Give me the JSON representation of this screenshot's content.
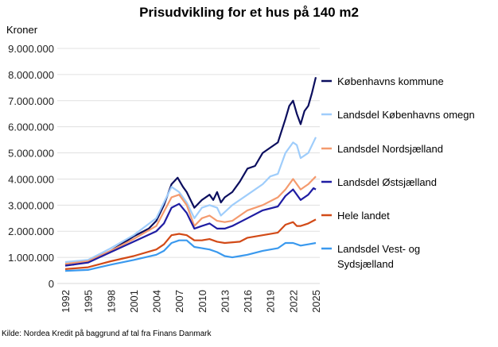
{
  "chart_data": {
    "type": "line",
    "title": "Prisudvikling for et hus på 140 m2",
    "ylabel": "Kroner",
    "xlabel": "",
    "ylim": [
      0,
      9000000
    ],
    "xlim": [
      1992,
      2025
    ],
    "yticks": [
      "0",
      "1.000.000",
      "2.000.000",
      "3.000.000",
      "4.000.000",
      "5.000.000",
      "6.000.000",
      "7.000.000",
      "8.000.000",
      "9.000.000"
    ],
    "xticks": [
      "1992",
      "1995",
      "1998",
      "2001",
      "2004",
      "2007",
      "2010",
      "2013",
      "2016",
      "2019",
      "2022",
      "2025"
    ],
    "grid": "horizontal",
    "legend": "right",
    "series": [
      {
        "name": "Københavns kommune",
        "color": "#0b0e5e",
        "x": [
          1992,
          1993,
          1995,
          1998,
          2001,
          2003,
          2004,
          2005,
          2006,
          2006.8,
          2007.5,
          2008,
          2009,
          2010,
          2011,
          2011.5,
          2012,
          2012.5,
          2013,
          2014,
          2015,
          2016,
          2017,
          2018,
          2019,
          2020,
          2021,
          2021.5,
          2022,
          2022.5,
          2023,
          2023.5,
          2024,
          2024.5,
          2025
        ],
        "y": [
          750000,
          720000,
          850000,
          1250000,
          1800000,
          2100000,
          2400000,
          3000000,
          3800000,
          4050000,
          3700000,
          3500000,
          2900000,
          3200000,
          3400000,
          3200000,
          3500000,
          3100000,
          3300000,
          3500000,
          3900000,
          4400000,
          4500000,
          5000000,
          5200000,
          5400000,
          6300000,
          6800000,
          7000000,
          6500000,
          6100000,
          6600000,
          6800000,
          7300000,
          7900000
        ]
      },
      {
        "name": "Landsdel Københavns omegn",
        "color": "#9fcdfb",
        "x": [
          1992,
          1995,
          1998,
          2001,
          2004,
          2006,
          2007,
          2008,
          2009,
          2010,
          2011,
          2012,
          2012.5,
          2014,
          2016,
          2018,
          2019,
          2020,
          2021,
          2022,
          2022.5,
          2023,
          2024,
          2025
        ],
        "y": [
          820000,
          900000,
          1350000,
          1850000,
          2500000,
          3700000,
          3500000,
          3100000,
          2500000,
          2900000,
          3000000,
          2900000,
          2600000,
          3000000,
          3400000,
          3800000,
          4100000,
          4200000,
          5000000,
          5400000,
          5300000,
          4800000,
          5000000,
          5600000
        ]
      },
      {
        "name": "Landsdel Nordsjælland",
        "color": "#f49a6e",
        "x": [
          1992,
          1995,
          1998,
          2001,
          2004,
          2006,
          2007,
          2008,
          2009,
          2010,
          2011,
          2012,
          2013,
          2014,
          2016,
          2018,
          2020,
          2021,
          2022,
          2023,
          2024,
          2025
        ],
        "y": [
          750000,
          850000,
          1250000,
          1700000,
          2200000,
          3300000,
          3400000,
          3000000,
          2200000,
          2500000,
          2600000,
          2400000,
          2350000,
          2400000,
          2800000,
          3000000,
          3300000,
          3600000,
          4000000,
          3600000,
          3800000,
          4100000
        ]
      },
      {
        "name": "Landsdel Østsjælland",
        "color": "#1f1da3",
        "x": [
          1992,
          1995,
          1998,
          2001,
          2004,
          2005,
          2006,
          2007,
          2008,
          2009,
          2010,
          2011,
          2012,
          2013,
          2014,
          2016,
          2018,
          2020,
          2021,
          2022,
          2023,
          2024,
          2024.7,
          2025
        ],
        "y": [
          680000,
          800000,
          1200000,
          1600000,
          2000000,
          2300000,
          2900000,
          3050000,
          2700000,
          2100000,
          2200000,
          2300000,
          2100000,
          2100000,
          2200000,
          2500000,
          2800000,
          2950000,
          3350000,
          3600000,
          3200000,
          3400000,
          3650000,
          3600000
        ]
      },
      {
        "name": "Hele landet",
        "color": "#d24a17",
        "x": [
          1992,
          1995,
          1998,
          2001,
          2004,
          2005,
          2006,
          2007,
          2008,
          2009,
          2010,
          2011,
          2012,
          2013,
          2015,
          2016,
          2018,
          2020,
          2021,
          2022,
          2022.5,
          2023,
          2024,
          2025
        ],
        "y": [
          550000,
          620000,
          850000,
          1050000,
          1300000,
          1500000,
          1850000,
          1900000,
          1850000,
          1650000,
          1650000,
          1700000,
          1600000,
          1550000,
          1600000,
          1750000,
          1850000,
          1950000,
          2250000,
          2350000,
          2200000,
          2200000,
          2300000,
          2450000
        ]
      },
      {
        "name": "Landsdel Vest- og Sydsjælland",
        "color": "#3a99ee",
        "x": [
          1992,
          1995,
          1998,
          2001,
          2004,
          2005,
          2006,
          2007,
          2008,
          2009,
          2010,
          2011,
          2012,
          2013,
          2014,
          2015,
          2016,
          2018,
          2020,
          2021,
          2022,
          2023,
          2024,
          2025
        ],
        "y": [
          480000,
          520000,
          720000,
          900000,
          1100000,
          1250000,
          1550000,
          1650000,
          1650000,
          1400000,
          1350000,
          1300000,
          1200000,
          1050000,
          1000000,
          1050000,
          1100000,
          1250000,
          1350000,
          1550000,
          1550000,
          1450000,
          1500000,
          1550000
        ]
      }
    ],
    "legend_labels": [
      [
        "Københavns kommune"
      ],
      [
        "Landsdel Københavns omegn"
      ],
      [
        "Landsdel Nordsjælland"
      ],
      [
        "Landsdel Østsjælland"
      ],
      [
        "Hele landet"
      ],
      [
        "Landsdel Vest- og",
        "Sydsjælland"
      ]
    ]
  },
  "source": "Kilde: Nordea Kredit på baggrund af tal fra Finans Danmark"
}
